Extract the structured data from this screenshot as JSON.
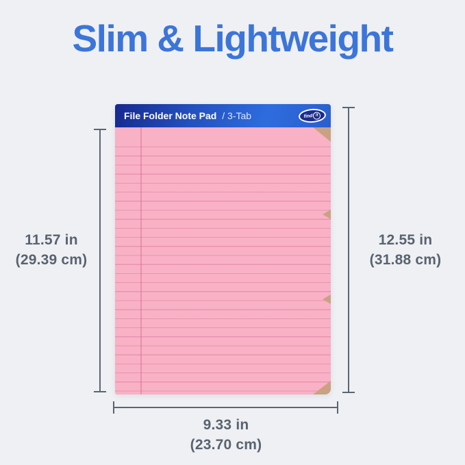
{
  "title": "Slim & Lightweight",
  "product": {
    "header_title": "File Folder Note Pad",
    "header_subtitle": "/ 3-Tab",
    "brand_find": "find",
    "brand_it": "it"
  },
  "dimensions": {
    "left": {
      "inches": "11.57 in",
      "cm": "(29.39 cm)"
    },
    "right": {
      "inches": "12.55 in",
      "cm": "(31.88 cm)"
    },
    "bottom": {
      "inches": "9.33 in",
      "cm": "(23.70 cm)"
    }
  },
  "colors": {
    "title_blue": "#3c75da",
    "header_gradient_start": "#17298e",
    "header_gradient_end": "#2e6cde",
    "paper_pink": "#f9b1c6",
    "ruling_pink": "#cd6a8e",
    "kraft_tan": "#c9a283",
    "measure_gray": "#5b6572",
    "background": "#eef0f3"
  }
}
